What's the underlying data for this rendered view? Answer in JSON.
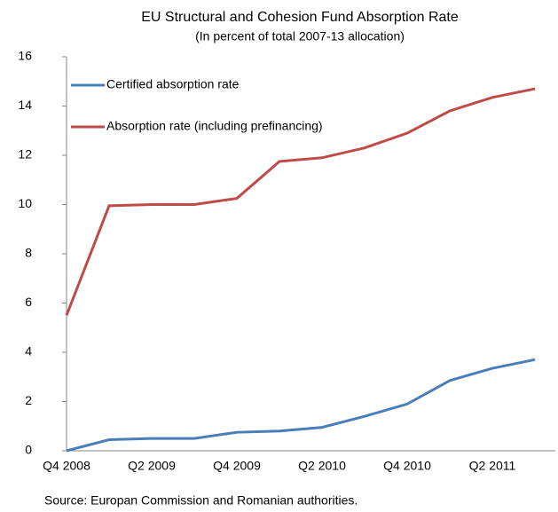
{
  "chart_data": {
    "type": "line",
    "title": "EU Structural and Cohesion Fund Absorption Rate",
    "subtitle": "(In percent of total 2007-13 allocation)",
    "categories": [
      "Q4 2008",
      null,
      "Q2 2009",
      null,
      "Q4 2009",
      null,
      "Q2 2010",
      null,
      "Q4 2010",
      null,
      "Q2 2011",
      null
    ],
    "series": [
      {
        "name": "Certified absorption rate",
        "color": "#4a7ebb",
        "values": [
          0,
          0.45,
          0.5,
          0.5,
          0.75,
          0.8,
          0.95,
          1.4,
          1.9,
          2.85,
          3.35,
          3.7
        ]
      },
      {
        "name": "Absorption rate (including prefinancing)",
        "color": "#be4b48",
        "values": [
          5.5,
          9.95,
          10.0,
          10.0,
          10.25,
          11.75,
          11.9,
          12.3,
          12.9,
          13.8,
          14.35,
          14.7
        ]
      }
    ],
    "ylim": [
      0,
      16
    ],
    "yticks": [
      0,
      2,
      4,
      6,
      8,
      10,
      12,
      14,
      16
    ],
    "grid": false,
    "legend": "top-left",
    "note": "Source: Europan Commission and Romanian authorities."
  }
}
